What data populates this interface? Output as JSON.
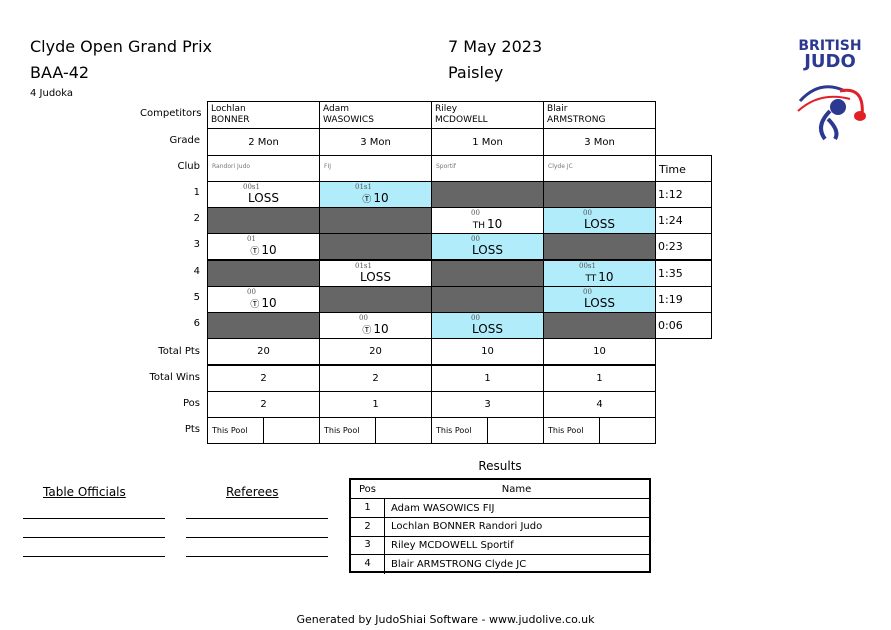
{
  "header": {
    "title": "Clyde Open Grand Prix",
    "code": "BAA-42",
    "count": "4 Judoka",
    "date": "7 May 2023",
    "venue": "Paisley",
    "logo_text": "BRITISH JUDO"
  },
  "row_labels": {
    "competitors": "Competitors",
    "grade": "Grade",
    "club": "Club",
    "total_pts": "Total Pts",
    "total_wins": "Total Wins",
    "pos": "Pos",
    "pts": "Pts"
  },
  "time_label": "Time",
  "competitors": [
    {
      "first": "Lochlan",
      "last": "BONNER",
      "grade": "2 Mon",
      "club": "Randori Judo",
      "total_pts": "20",
      "total_wins": "2",
      "pos": "2",
      "pts_label": "This Pool"
    },
    {
      "first": "Adam",
      "last": "WASOWICS",
      "grade": "3 Mon",
      "club": "FIJ",
      "total_pts": "20",
      "total_wins": "2",
      "pos": "1",
      "pts_label": "This Pool"
    },
    {
      "first": "Riley",
      "last": "MCDOWELL",
      "grade": "1 Mon",
      "club": "Sportif",
      "total_pts": "10",
      "total_wins": "1",
      "pos": "3",
      "pts_label": "This Pool"
    },
    {
      "first": "Blair",
      "last": "ARMSTRONG",
      "grade": "3 Mon",
      "club": "Clyde JC",
      "total_pts": "10",
      "total_wins": "1",
      "pos": "4",
      "pts_label": "This Pool"
    }
  ],
  "matches": [
    {
      "num": "1",
      "time": "1:12",
      "cells": [
        {
          "state": "white",
          "score": "00s1",
          "result": "LOSS"
        },
        {
          "state": "blue",
          "score": "01s1",
          "icon": "Ⓣ",
          "result": "10"
        },
        {
          "state": "gray"
        },
        {
          "state": "gray"
        }
      ]
    },
    {
      "num": "2",
      "time": "1:24",
      "cells": [
        {
          "state": "gray"
        },
        {
          "state": "gray"
        },
        {
          "state": "white",
          "score": "00",
          "icon": "TH",
          "result": "10"
        },
        {
          "state": "blue",
          "score": "00",
          "result": "LOSS"
        }
      ]
    },
    {
      "num": "3",
      "time": "0:23",
      "cells": [
        {
          "state": "white",
          "score": "01",
          "icon": "Ⓣ",
          "result": "10"
        },
        {
          "state": "gray"
        },
        {
          "state": "blue",
          "score": "00",
          "result": "LOSS"
        },
        {
          "state": "gray"
        }
      ]
    },
    {
      "num": "4",
      "time": "1:35",
      "cells": [
        {
          "state": "gray"
        },
        {
          "state": "white",
          "score": "01s1",
          "result": "LOSS"
        },
        {
          "state": "gray"
        },
        {
          "state": "blue",
          "score": "00s1",
          "icon": "TT",
          "result": "10"
        }
      ]
    },
    {
      "num": "5",
      "time": "1:19",
      "cells": [
        {
          "state": "white",
          "score": "00",
          "icon": "Ⓣ",
          "result": "10"
        },
        {
          "state": "gray"
        },
        {
          "state": "gray"
        },
        {
          "state": "blue",
          "score": "00",
          "result": "LOSS"
        }
      ]
    },
    {
      "num": "6",
      "time": "0:06",
      "cells": [
        {
          "state": "gray"
        },
        {
          "state": "white",
          "score": "00",
          "icon": "Ⓣ",
          "result": "10"
        },
        {
          "state": "blue",
          "score": "00",
          "result": "LOSS"
        },
        {
          "state": "gray"
        }
      ]
    }
  ],
  "officials": {
    "table": "Table Officials",
    "referees": "Referees"
  },
  "results": {
    "title": "Results",
    "pos_header": "Pos",
    "name_header": "Name",
    "rows": [
      {
        "pos": "1",
        "name": "Adam WASOWICS FIJ"
      },
      {
        "pos": "2",
        "name": "Lochlan BONNER Randori Judo"
      },
      {
        "pos": "3",
        "name": "Riley MCDOWELL Sportif"
      },
      {
        "pos": "4",
        "name": "Blair ARMSTRONG Clyde JC"
      }
    ]
  },
  "footer": "Generated by JudoShiai Software - www.judolive.co.uk",
  "colors": {
    "blue": "#b0ecfa",
    "gray": "#666666",
    "logo_blue": "#2b3990",
    "logo_red": "#e21f26"
  }
}
